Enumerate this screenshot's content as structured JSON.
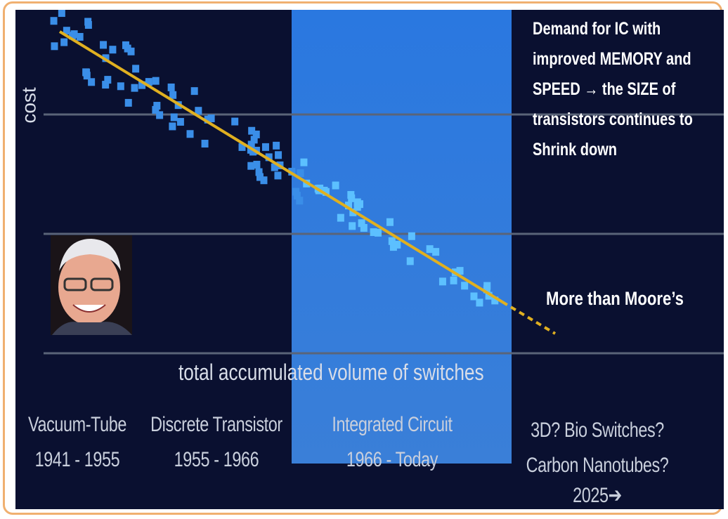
{
  "slide": {
    "axis": {
      "y_label": "cost",
      "x_label": "total accumulated volume of switches"
    },
    "note": "Demand for IC with improved MEMORY and SPEED → the SIZE of transistors continues to Shrink down",
    "annotation": "More than Moore’s",
    "eras": [
      {
        "name": "Vacuum-Tube",
        "period": "1941 - 1955"
      },
      {
        "name": "Discrete Transistor",
        "period": "1955 - 1966"
      },
      {
        "name": "Integrated Circuit",
        "period": "1966 - Today"
      },
      {
        "name": "3D? Bio Switches? Carbon Nanotubes?",
        "period": "2025➔"
      }
    ]
  }
}
